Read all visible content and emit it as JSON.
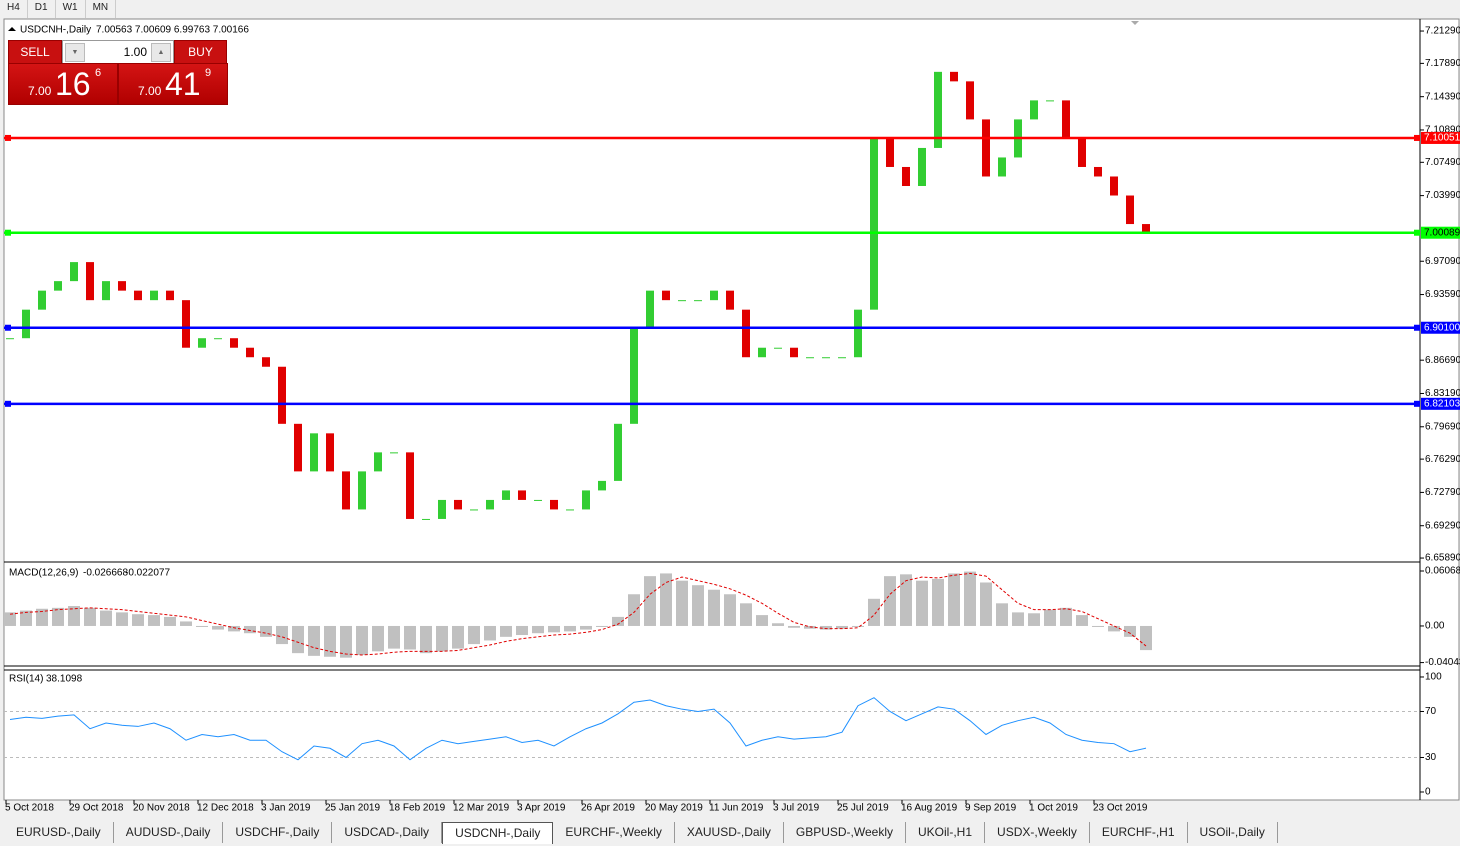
{
  "toolbar": {
    "timeframes": [
      "H4",
      "D1",
      "W1",
      "MN"
    ]
  },
  "trade_panel": {
    "sell": "SELL",
    "buy": "BUY",
    "lots": "1.00",
    "sell_price": {
      "big": "7.00",
      "pips": "16",
      "point": "6"
    },
    "buy_price": {
      "big": "7.00",
      "pips": "41",
      "point": "9"
    }
  },
  "tabs": {
    "items": [
      "EURUSD-,Daily",
      "AUDUSD-,Daily",
      "USDCHF-,Daily",
      "USDCAD-,Daily",
      "USDCNH-,Daily",
      "EURCHF-,Weekly",
      "XAUUSD-,Daily",
      "GBPUSD-,Weekly",
      "UKOil-,H1",
      "USDX-,Weekly",
      "EURCHF-,H1",
      "USOil-,Daily"
    ],
    "active": 4
  },
  "chart_data": [
    {
      "type": "candles",
      "title": "USDCNH-,Daily",
      "subtitle": "7.00563 7.00609 6.99763 7.00166",
      "up_color": "#32cd32",
      "down_color": "#e00000",
      "categories": [
        "5 Oct 2018",
        null,
        null,
        null,
        "29 Oct 2018",
        null,
        null,
        null,
        "20 Nov 2018",
        null,
        null,
        null,
        "12 Dec 2018",
        null,
        null,
        null,
        "3 Jan 2019",
        null,
        null,
        null,
        "25 Jan 2019",
        null,
        null,
        null,
        "18 Feb 2019",
        null,
        null,
        null,
        "12 Mar 2019",
        null,
        null,
        null,
        "3 Apr 2019",
        null,
        null,
        null,
        "26 Apr 2019",
        null,
        null,
        null,
        "20 May 2019",
        null,
        null,
        null,
        "11 Jun 2019",
        null,
        null,
        null,
        "3 Jul 2019",
        null,
        null,
        null,
        "25 Jul 2019",
        null,
        null,
        null,
        "16 Aug 2019",
        null,
        null,
        null,
        "9 Sep 2019",
        null,
        null,
        null,
        "1 Oct 2019",
        null,
        null,
        null,
        "23 Oct 2019",
        null,
        null,
        null
      ],
      "values": [
        6.89,
        6.92,
        6.94,
        6.95,
        6.97,
        6.93,
        6.95,
        6.94,
        6.93,
        6.94,
        6.93,
        6.88,
        6.89,
        6.89,
        6.88,
        6.87,
        6.86,
        6.8,
        6.75,
        6.79,
        6.75,
        6.71,
        6.75,
        6.77,
        6.77,
        6.7,
        6.7,
        6.72,
        6.71,
        6.71,
        6.72,
        6.73,
        6.72,
        6.72,
        6.71,
        6.71,
        6.73,
        6.74,
        6.8,
        6.9,
        6.94,
        6.93,
        6.93,
        6.93,
        6.94,
        6.92,
        6.87,
        6.88,
        6.88,
        6.87,
        6.87,
        6.87,
        6.87,
        6.92,
        7.1,
        7.07,
        7.05,
        7.09,
        7.17,
        7.16,
        7.12,
        7.06,
        7.08,
        7.12,
        7.14,
        7.14,
        7.1,
        7.07,
        7.06,
        7.04,
        7.01,
        7.00166
      ],
      "ylim": [
        6.6558,
        7.2245
      ],
      "yticks": [
        {
          "value": 7.2129,
          "label": "7.21290"
        },
        {
          "value": 7.1789,
          "label": "7.17890"
        },
        {
          "value": 7.1439,
          "label": "7.14390"
        },
        {
          "value": 7.1089,
          "label": "7.10890"
        },
        {
          "value": 7.0749,
          "label": "7.07490"
        },
        {
          "value": 7.0399,
          "label": "7.03990"
        },
        {
          "value": 6.9709,
          "label": "6.97090"
        },
        {
          "value": 6.9359,
          "label": "6.93590"
        },
        {
          "value": 6.8669,
          "label": "6.86690"
        },
        {
          "value": 6.8319,
          "label": "6.83190"
        },
        {
          "value": 6.7969,
          "label": "6.79690"
        },
        {
          "value": 6.7629,
          "label": "6.76290"
        },
        {
          "value": 6.7279,
          "label": "6.72790"
        },
        {
          "value": 6.6929,
          "label": "6.69290"
        },
        {
          "value": 6.6589,
          "label": "6.65890"
        }
      ],
      "levels": [
        {
          "value": 7.10051,
          "color": "#ff0000"
        },
        {
          "value": 7.00089,
          "color": "#00ff00"
        },
        {
          "value": {
            "value": 6.901,
            "label": "6.90100"
          },
          "color": "#0000ff"
        },
        {
          "value": 6.82103,
          "color": "#0000ff"
        }
      ]
    },
    {
      "type": "macd",
      "title": "MACD(12,26,9)",
      "series": [
        {
          "color": "#c0c0c0",
          "values": [
            0.015,
            0.017,
            0.019,
            0.02,
            0.022,
            0.02,
            0.017,
            0.015,
            0.013,
            0.012,
            0.01,
            0.005,
            0,
            -0.004,
            -0.006,
            -0.008,
            -0.012,
            -0.02,
            -0.03,
            -0.033,
            -0.034,
            -0.035,
            -0.032,
            -0.028,
            -0.025,
            -0.026,
            -0.03,
            -0.028,
            -0.025,
            -0.02,
            -0.016,
            -0.012,
            -0.01,
            -0.008,
            -0.007,
            -0.006,
            -0.004,
            0,
            0.01,
            0.035,
            0.055,
            0.058,
            0.05,
            0.045,
            0.04,
            0.035,
            0.025,
            0.012,
            0.003,
            -0.002,
            -0.003,
            -0.004,
            -0.003,
            0,
            0.03,
            0.055,
            0.057,
            0.05,
            0.052,
            0.058,
            0.06,
            0.048,
            0.025,
            0.015,
            0.014,
            0.018,
            0.02,
            0.012,
            0,
            -0.006,
            -0.012,
            -0.026668
          ]
        },
        {
          "color": "#e00000",
          "values": [
            0.013,
            0.015,
            0.016,
            0.018,
            0.019,
            0.02,
            0.019,
            0.018,
            0.016,
            0.014,
            0.012,
            0.01,
            0.006,
            0.002,
            -0.002,
            -0.005,
            -0.008,
            -0.012,
            -0.018,
            -0.024,
            -0.028,
            -0.031,
            -0.032,
            -0.031,
            -0.029,
            -0.028,
            -0.028,
            -0.028,
            -0.027,
            -0.024,
            -0.021,
            -0.017,
            -0.014,
            -0.012,
            -0.01,
            -0.009,
            -0.007,
            -0.004,
            0.002,
            0.015,
            0.035,
            0.048,
            0.054,
            0.05,
            0.046,
            0.041,
            0.034,
            0.025,
            0.014,
            0.004,
            -0.001,
            -0.003,
            -0.003,
            -0.002,
            0.012,
            0.035,
            0.05,
            0.054,
            0.053,
            0.056,
            0.058,
            0.055,
            0.04,
            0.025,
            0.018,
            0.018,
            0.019,
            0.016,
            0.008,
            0,
            -0.008,
            -0.022077
          ]
        }
      ],
      "ylim": [
        -0.0442,
        0.0662
      ],
      "yticks": [
        0.060687,
        {
          "value": 0,
          "label": "0.00"
        },
        -0.04043
      ]
    },
    {
      "type": "rsi",
      "title": "RSI(14)",
      "color": "#1e90ff",
      "values": [
        63,
        65,
        64,
        66,
        67,
        55,
        60,
        58,
        57,
        60,
        55,
        45,
        50,
        48,
        50,
        45,
        45,
        35,
        28,
        40,
        38,
        30,
        42,
        45,
        40,
        28,
        38,
        45,
        42,
        44,
        46,
        48,
        43,
        45,
        40,
        48,
        55,
        60,
        68,
        78,
        80,
        75,
        72,
        70,
        72,
        60,
        40,
        45,
        48,
        46,
        47,
        48,
        52,
        75,
        82,
        70,
        62,
        68,
        74,
        72,
        62,
        50,
        58,
        62,
        65,
        60,
        50,
        45,
        43,
        42,
        35,
        38.1098
      ],
      "ylim": [
        -6.1,
        105.2
      ],
      "yticks": [
        100,
        70,
        30,
        0
      ]
    }
  ]
}
